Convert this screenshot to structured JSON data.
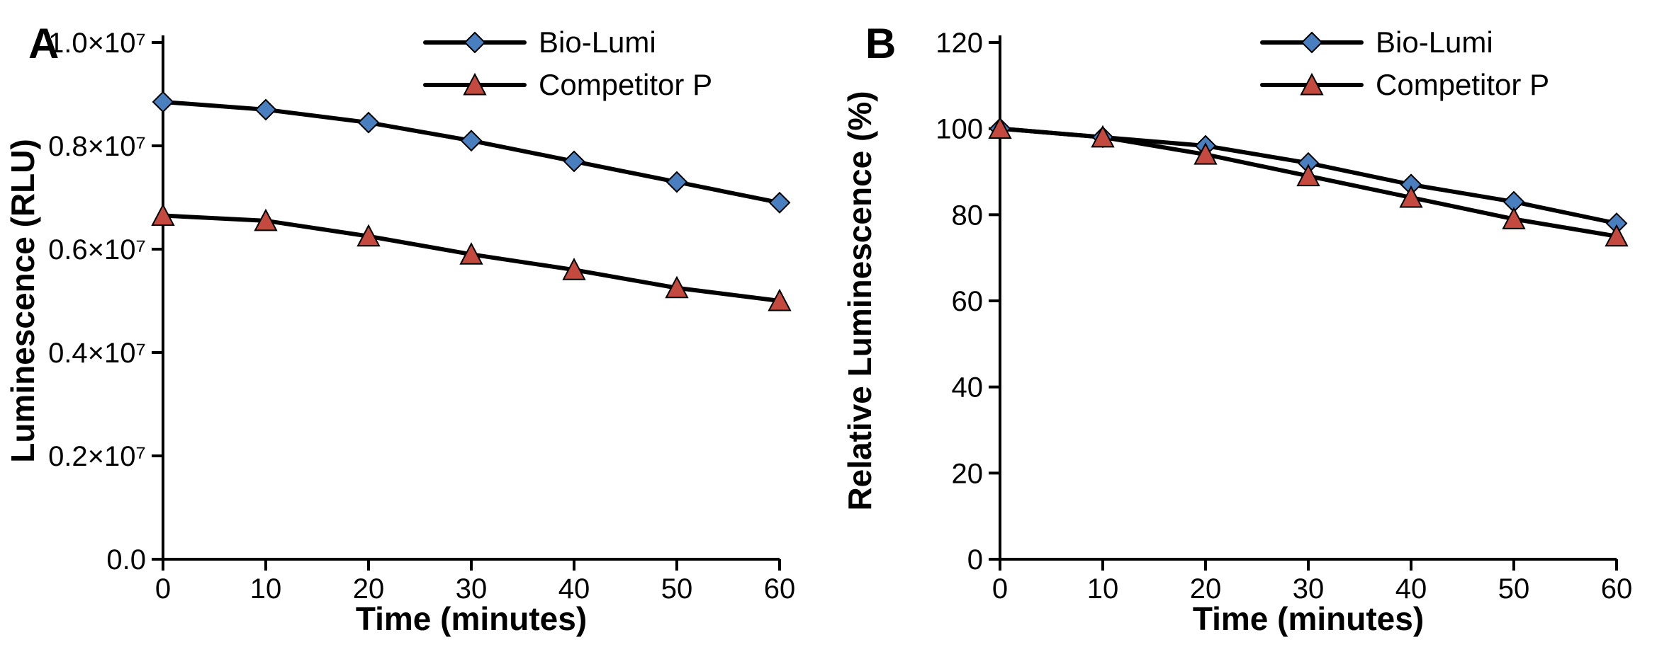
{
  "figure": {
    "background_color": "#ffffff",
    "font_family": "Segoe UI, Helvetica Neue, Arial, sans-serif"
  },
  "panelA": {
    "type": "line",
    "tag": "A",
    "xlabel": "Time (minutes)",
    "ylabel": "Luminescence (RLU)",
    "xlim": [
      0,
      60
    ],
    "ylim": [
      0.0,
      1.0
    ],
    "xtick_values": [
      0,
      10,
      20,
      30,
      40,
      50,
      60
    ],
    "xtick_labels": [
      "0",
      "10",
      "20",
      "30",
      "40",
      "50",
      "60"
    ],
    "ytick_values": [
      0.0,
      0.2,
      0.4,
      0.6,
      0.8,
      1.0
    ],
    "ytick_labels": [
      "0.0",
      "0.2×10⁷",
      "0.4×10⁷",
      "0.6×10⁷",
      "0.8×10⁷",
      "1.0×10⁷"
    ],
    "axis_fontsize": 46,
    "tick_fontsize": 40,
    "line_color": "#000000",
    "line_width": 6,
    "marker_stroke": "#000000",
    "marker_stroke_width": 2,
    "series": [
      {
        "name": "Bio-Lumi",
        "marker": "diamond",
        "marker_fill": "#4a7fbf",
        "marker_size": 28,
        "x": [
          0,
          10,
          20,
          30,
          40,
          50,
          60
        ],
        "y": [
          0.885,
          0.87,
          0.845,
          0.81,
          0.77,
          0.73,
          0.69
        ]
      },
      {
        "name": "Competitor P",
        "marker": "triangle",
        "marker_fill": "#c44a3f",
        "marker_size": 30,
        "x": [
          0,
          10,
          20,
          30,
          40,
          50,
          60
        ],
        "y": [
          0.665,
          0.655,
          0.625,
          0.59,
          0.56,
          0.525,
          0.5
        ]
      }
    ],
    "legend": {
      "items": [
        "Bio-Lumi",
        "Competitor P"
      ]
    }
  },
  "panelB": {
    "type": "line",
    "tag": "B",
    "xlabel": "Time (minutes)",
    "ylabel": "Relative Luminescence (%)",
    "xlim": [
      0,
      60
    ],
    "ylim": [
      0,
      120
    ],
    "xtick_values": [
      0,
      10,
      20,
      30,
      40,
      50,
      60
    ],
    "xtick_labels": [
      "0",
      "10",
      "20",
      "30",
      "40",
      "50",
      "60"
    ],
    "ytick_values": [
      0,
      20,
      40,
      60,
      80,
      100,
      120
    ],
    "ytick_labels": [
      "0",
      "20",
      "40",
      "60",
      "80",
      "100",
      "120"
    ],
    "axis_fontsize": 46,
    "tick_fontsize": 40,
    "line_color": "#000000",
    "line_width": 6,
    "marker_stroke": "#000000",
    "marker_stroke_width": 2,
    "series": [
      {
        "name": "Bio-Lumi",
        "marker": "diamond",
        "marker_fill": "#4a7fbf",
        "marker_size": 28,
        "x": [
          0,
          10,
          20,
          30,
          40,
          50,
          60
        ],
        "y": [
          100,
          98,
          96,
          92,
          87,
          83,
          78
        ]
      },
      {
        "name": "Competitor P",
        "marker": "triangle",
        "marker_fill": "#c44a3f",
        "marker_size": 30,
        "x": [
          0,
          10,
          20,
          30,
          40,
          50,
          60
        ],
        "y": [
          100,
          98,
          94,
          89,
          84,
          79,
          75
        ]
      }
    ],
    "legend": {
      "items": [
        "Bio-Lumi",
        "Competitor P"
      ]
    }
  }
}
